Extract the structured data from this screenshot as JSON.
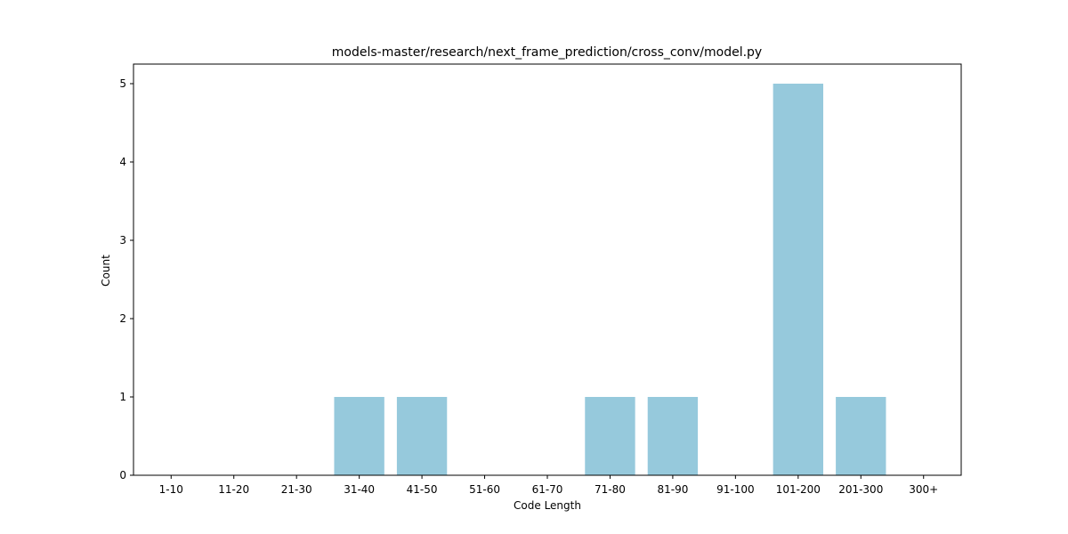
{
  "chart_data": {
    "type": "bar",
    "title": "models-master/research/next_frame_prediction/cross_conv/model.py",
    "xlabel": "Code Length",
    "ylabel": "Count",
    "categories": [
      "1-10",
      "11-20",
      "21-30",
      "31-40",
      "41-50",
      "51-60",
      "61-70",
      "71-80",
      "81-90",
      "91-100",
      "101-200",
      "201-300",
      "300+"
    ],
    "values": [
      0,
      0,
      0,
      1,
      1,
      0,
      0,
      1,
      1,
      0,
      5,
      1,
      0
    ],
    "ylim": [
      0,
      5.25
    ],
    "yticks": [
      0,
      1,
      2,
      3,
      4,
      5
    ],
    "bar_color": "#96c9dc",
    "grid": false,
    "legend": "none"
  }
}
